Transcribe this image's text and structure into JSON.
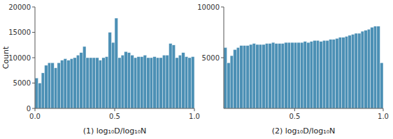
{
  "chart_data": [
    {
      "type": "histogram",
      "color": "#4c90b5",
      "xlabel": "(1) log₁₀D/log₁₀N",
      "ylabel": "Count",
      "bins": [
        0,
        0.02,
        0.04,
        0.06,
        0.08,
        0.1,
        0.12,
        0.14,
        0.16,
        0.18,
        0.2,
        0.22,
        0.24,
        0.26,
        0.28,
        0.3,
        0.32,
        0.34,
        0.36,
        0.38,
        0.4,
        0.42,
        0.44,
        0.46,
        0.48,
        0.5,
        0.52,
        0.54,
        0.56,
        0.58,
        0.6,
        0.62,
        0.64,
        0.66,
        0.68,
        0.7,
        0.72,
        0.74,
        0.76,
        0.78,
        0.8,
        0.82,
        0.84,
        0.86,
        0.88,
        0.9,
        0.92,
        0.94,
        0.96,
        0.98,
        1.0
      ],
      "values": [
        6000,
        5000,
        7000,
        8500,
        9000,
        9000,
        8000,
        9000,
        9500,
        9800,
        9500,
        9800,
        10000,
        10500,
        11000,
        12200,
        10000,
        10000,
        10000,
        10000,
        9500,
        10000,
        10200,
        15000,
        13000,
        17800,
        10000,
        10500,
        11200,
        11000,
        10500,
        10000,
        10200,
        10200,
        10500,
        10000,
        10000,
        10200,
        10000,
        10000,
        10500,
        10500,
        12800,
        12500,
        10000,
        10500,
        11000,
        10200,
        10000,
        10200
      ],
      "xlim": [
        0.0,
        1.0
      ],
      "ylim": [
        0,
        20000
      ],
      "xticks": [
        {
          "value": 0,
          "label": "0.0"
        },
        0.5,
        {
          "value": 1,
          "label": "1.0"
        }
      ],
      "yticks": [
        0,
        5000,
        10000,
        15000,
        20000
      ],
      "grid": false
    },
    {
      "type": "histogram",
      "color": "#4c90b5",
      "xlabel": "(2) log₁₀D/log₁₀N",
      "bins": [
        0.1,
        0.118,
        0.136,
        0.154,
        0.172,
        0.19,
        0.208,
        0.226,
        0.244,
        0.262,
        0.28,
        0.298,
        0.316,
        0.334,
        0.352,
        0.37,
        0.388,
        0.406,
        0.424,
        0.442,
        0.46,
        0.478,
        0.496,
        0.514,
        0.532,
        0.55,
        0.568,
        0.586,
        0.604,
        0.622,
        0.64,
        0.658,
        0.676,
        0.694,
        0.712,
        0.73,
        0.748,
        0.766,
        0.784,
        0.802,
        0.82,
        0.838,
        0.856,
        0.874,
        0.892,
        0.91,
        0.928,
        0.946,
        0.964,
        0.982,
        1.0
      ],
      "values": [
        6000,
        4500,
        5200,
        5800,
        6000,
        6200,
        6200,
        6200,
        6300,
        6400,
        6300,
        6300,
        6300,
        6400,
        6400,
        6500,
        6400,
        6400,
        6400,
        6500,
        6500,
        6500,
        6500,
        6500,
        6500,
        6600,
        6500,
        6600,
        6700,
        6700,
        6600,
        6700,
        6700,
        6800,
        6800,
        6900,
        7000,
        7000,
        7100,
        7200,
        7300,
        7400,
        7400,
        7600,
        7700,
        7800,
        8000,
        8100,
        8100,
        4500
      ],
      "xlim": [
        0.1,
        1.0
      ],
      "ylim": [
        0,
        10000
      ],
      "xticks": [
        0.5,
        {
          "value": 1,
          "label": "1.0"
        }
      ],
      "yticks": [
        5000,
        10000
      ],
      "grid": false
    }
  ]
}
